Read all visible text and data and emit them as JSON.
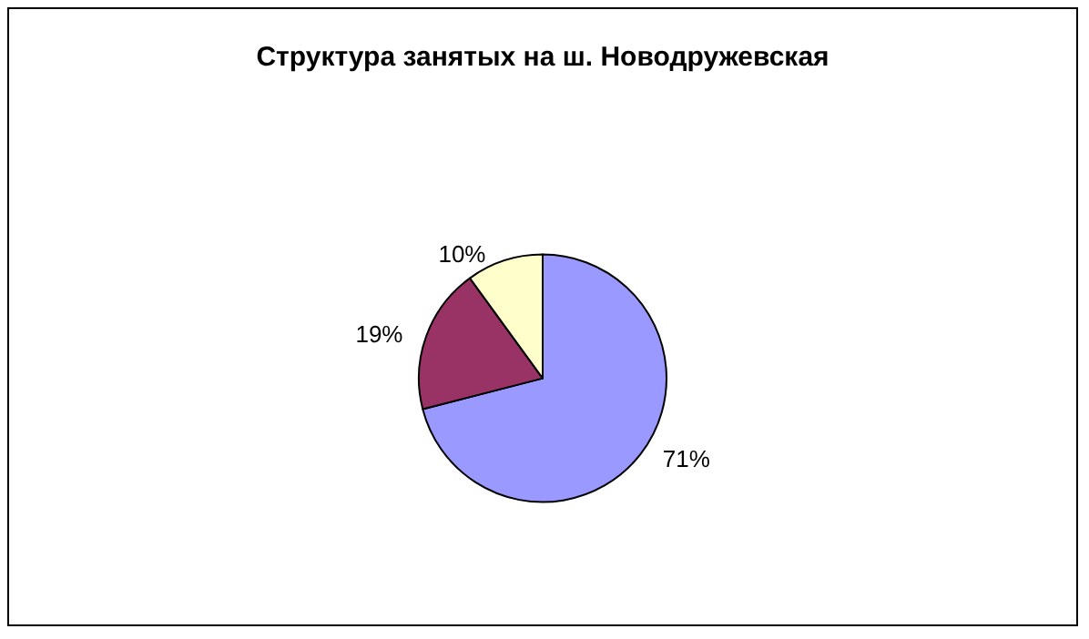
{
  "chart_data": {
    "type": "pie",
    "title": "Структура занятых на ш. Новодружевская",
    "categories": [
      null,
      null,
      null
    ],
    "values": [
      71,
      19,
      10
    ],
    "colors": [
      "#9999ff",
      "#993366",
      "#ffffcc"
    ],
    "value_labels": [
      "71%",
      "19%",
      "10%"
    ]
  }
}
